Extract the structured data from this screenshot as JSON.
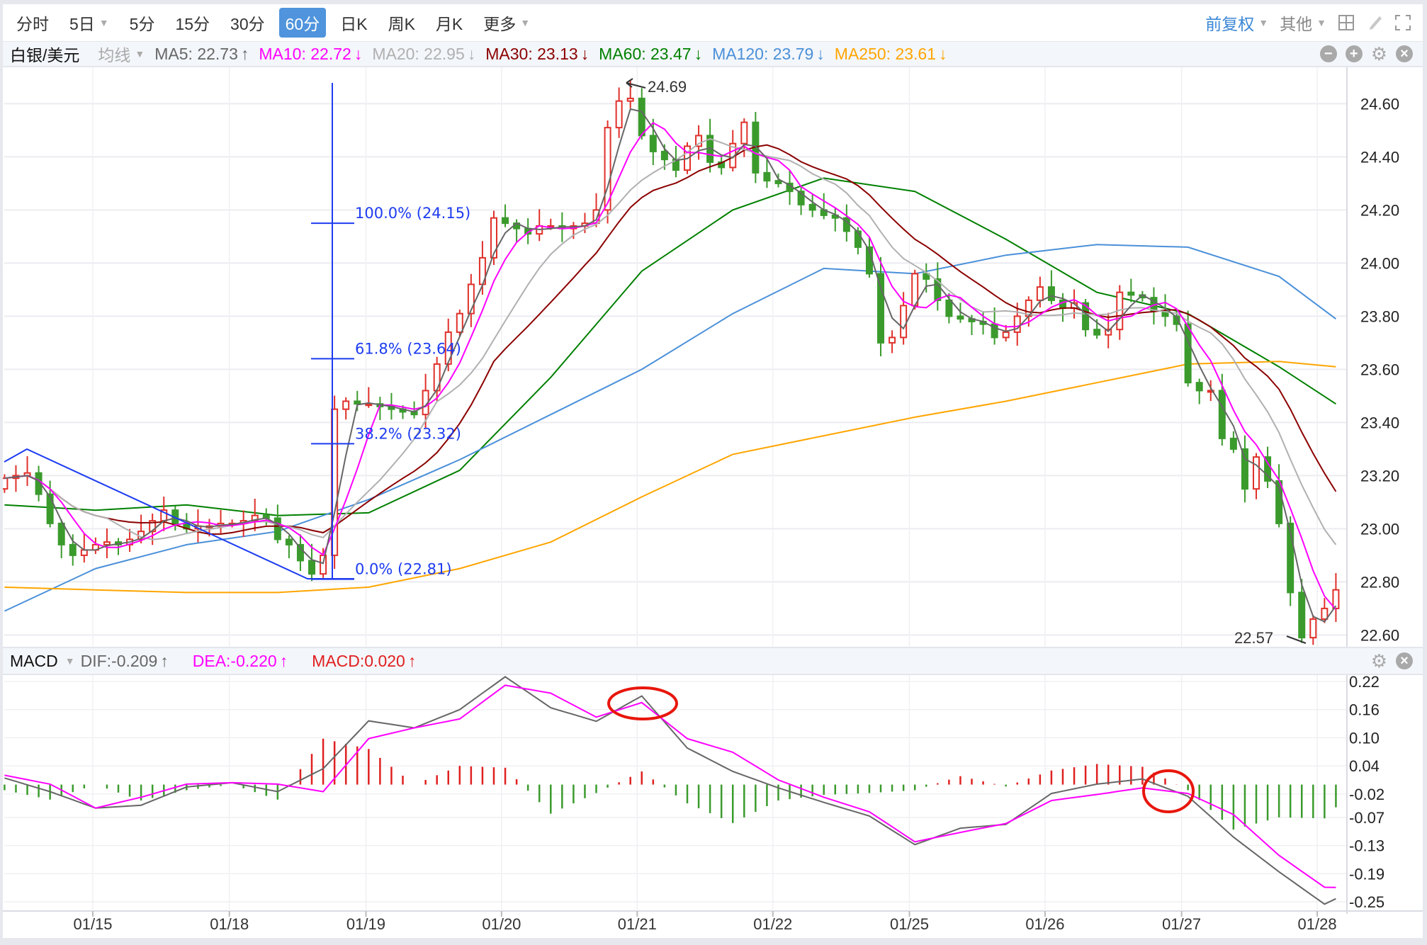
{
  "toolbar": {
    "tabs": [
      {
        "label": "分时"
      },
      {
        "label": "5日",
        "dropdown": true
      },
      {
        "label": "5分"
      },
      {
        "label": "15分"
      },
      {
        "label": "30分"
      },
      {
        "label": "60分",
        "active": true
      },
      {
        "label": "日K"
      },
      {
        "label": "周K"
      },
      {
        "label": "月K"
      },
      {
        "label": "更多",
        "dropdown": true
      }
    ],
    "adjust_label": "前复权",
    "other_label": "其他",
    "icons": [
      "layout-grid-icon",
      "pen-icon",
      "fullscreen-icon"
    ]
  },
  "ma_legend": {
    "symbol": "白银/美元",
    "type_label": "均线",
    "items": [
      {
        "label": "MA5: 22.73",
        "arrow": "↑",
        "color": "#666666"
      },
      {
        "label": "MA10: 22.72",
        "arrow": "↓",
        "color": "#ff00ff"
      },
      {
        "label": "MA20: 22.95",
        "arrow": "↓",
        "color": "#b0b0b0"
      },
      {
        "label": "MA30: 23.13",
        "arrow": "↓",
        "color": "#8b0000"
      },
      {
        "label": "MA60: 23.47",
        "arrow": "↓",
        "color": "#008000"
      },
      {
        "label": "MA120: 23.79",
        "arrow": "↓",
        "color": "#4a90d9"
      },
      {
        "label": "MA250: 23.61",
        "arrow": "↓",
        "color": "#ffa500"
      }
    ]
  },
  "macd_legend": {
    "title": "MACD",
    "items": [
      {
        "label": "DIF:-0.209",
        "arrow": "↑",
        "color": "#666666"
      },
      {
        "label": "DEA:-0.220",
        "arrow": "↑",
        "color": "#ff00ff"
      },
      {
        "label": "MACD:0.020",
        "arrow": "↑",
        "color": "#e02020"
      }
    ]
  },
  "chart_data": [
    {
      "type": "candlestick",
      "interval": "60分",
      "y_ticks": [
        "24.60",
        "24.40",
        "24.20",
        "24.00",
        "23.80",
        "23.60",
        "23.40",
        "23.20",
        "23.00",
        "22.80",
        "22.60"
      ],
      "ylim": [
        22.57,
        24.72
      ],
      "x_ticks": [
        "01/15",
        "01/18",
        "01/19",
        "01/20",
        "01/21",
        "01/22",
        "01/25",
        "01/26",
        "01/27",
        "01/28"
      ],
      "grid": true,
      "up_color": "#e0302a",
      "down_color": "#3a9b2c",
      "close": [
        23.19,
        23.2,
        23.21,
        23.13,
        23.02,
        22.94,
        22.9,
        22.92,
        22.94,
        22.95,
        22.94,
        22.96,
        22.99,
        23.03,
        23.07,
        23.02,
        23.0,
        23.01,
        23.01,
        23.02,
        23.02,
        23.03,
        23.05,
        23.04,
        22.96,
        22.94,
        22.88,
        22.83,
        22.9,
        23.45,
        23.48,
        23.47,
        23.47,
        23.46,
        23.45,
        23.44,
        23.43,
        23.52,
        23.62,
        23.74,
        23.81,
        23.92,
        24.02,
        24.17,
        24.15,
        24.13,
        24.11,
        24.14,
        24.14,
        24.13,
        24.14,
        24.15,
        24.2,
        24.51,
        24.61,
        24.62,
        24.48,
        24.42,
        24.39,
        24.35,
        24.44,
        24.48,
        24.38,
        24.36,
        24.45,
        24.53,
        24.34,
        24.31,
        24.3,
        24.27,
        24.22,
        24.2,
        24.18,
        24.17,
        24.12,
        24.06,
        23.96,
        23.7,
        23.72,
        23.84,
        23.96,
        23.94,
        23.86,
        23.8,
        23.79,
        23.78,
        23.77,
        23.72,
        23.74,
        23.8,
        23.86,
        23.91,
        23.86,
        23.83,
        23.85,
        23.75,
        23.73,
        23.75,
        23.89,
        23.88,
        23.87,
        23.82,
        23.8,
        23.77,
        23.55,
        23.52,
        23.52,
        23.34,
        23.3,
        23.15,
        23.27,
        23.18,
        23.02,
        22.76,
        22.59,
        22.66,
        22.7,
        22.77
      ],
      "high_marker": "24.69",
      "low_marker": "22.57",
      "moving_averages": {
        "MA60": {
          "color": "#008000",
          "sampled_every_8_bars": [
            23.09,
            23.07,
            23.09,
            23.05,
            23.06,
            23.22,
            23.57,
            23.97,
            24.2,
            24.32,
            24.27,
            24.09,
            23.89,
            23.81,
            23.61,
            23.47
          ]
        },
        "MA120": {
          "color": "#4a90d9",
          "sampled_every_8_bars": [
            22.69,
            22.85,
            22.94,
            22.99,
            23.11,
            23.26,
            23.43,
            23.6,
            23.81,
            23.98,
            23.96,
            24.03,
            24.07,
            24.06,
            23.95,
            23.79
          ]
        },
        "MA250": {
          "color": "#ffa500",
          "sampled_every_8_bars": [
            22.78,
            22.77,
            22.76,
            22.76,
            22.78,
            22.85,
            22.95,
            23.12,
            23.28,
            23.35,
            23.42,
            23.48,
            23.55,
            23.62,
            23.63,
            23.61
          ]
        }
      },
      "fibonacci": [
        {
          "label": "100.0% (24.15)",
          "price": 24.15
        },
        {
          "label": "61.8% (23.64)",
          "price": 23.64
        },
        {
          "label": "38.2% (23.32)",
          "price": 23.32
        },
        {
          "label": "0.0% (22.81)",
          "price": 22.81
        }
      ]
    },
    {
      "type": "line",
      "title": "MACD",
      "y_ticks": [
        "0.22",
        "0.16",
        "0.10",
        "0.04",
        "-0.02",
        "-0.07",
        "-0.13",
        "-0.19",
        "-0.25"
      ],
      "ylim": [
        -0.27,
        0.24
      ],
      "series": [
        {
          "name": "DIF",
          "color": "#666666",
          "sampled_every_4_bars": [
            0.014,
            -0.015,
            -0.05,
            -0.044,
            -0.005,
            0.004,
            -0.015,
            0.034,
            0.136,
            0.121,
            0.16,
            0.23,
            0.164,
            0.135,
            0.189,
            0.078,
            0.028,
            -0.007,
            -0.038,
            -0.067,
            -0.128,
            -0.093,
            -0.085,
            -0.019,
            0.001,
            0.012,
            -0.025,
            -0.112,
            -0.186,
            -0.255,
            -0.209
          ]
        },
        {
          "name": "DEA",
          "color": "#ff00ff",
          "sampled_every_4_bars": [
            0.02,
            0.001,
            -0.05,
            -0.027,
            0.001,
            0.004,
            0.001,
            -0.015,
            0.098,
            0.121,
            0.14,
            0.212,
            0.195,
            0.144,
            0.175,
            0.098,
            0.069,
            0.01,
            -0.027,
            -0.058,
            -0.122,
            -0.102,
            -0.083,
            -0.034,
            -0.021,
            -0.007,
            -0.019,
            -0.064,
            -0.151,
            -0.219,
            -0.22
          ]
        }
      ],
      "histogram": {
        "name": "MACD",
        "up_color": "#e02020",
        "down_color": "#3a9b2c"
      }
    }
  ]
}
